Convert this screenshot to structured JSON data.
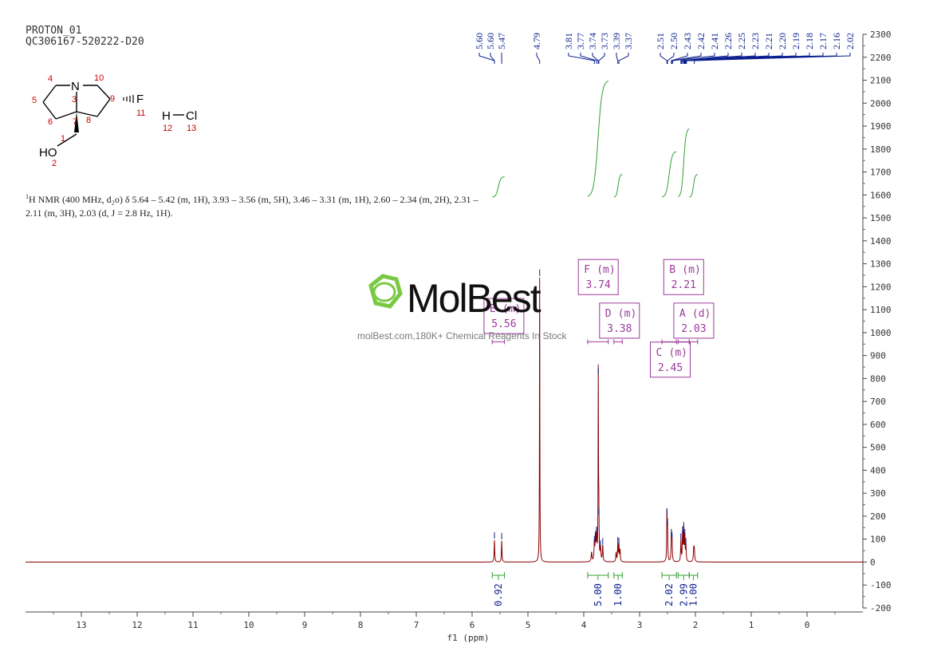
{
  "header": {
    "line1": "PROTON_01",
    "line2": "QC306167-520222-D20"
  },
  "description": {
    "sup": "1",
    "text": "H NMR (400 MHz, d₂o) δ 5.64 – 5.42 (m, 1H), 3.93 – 3.56 (m, 5H), 3.46 – 3.31 (m, 1H), 2.60 – 2.34 (m, 2H), 2.31 – 2.11 (m, 3H), 2.03 (d, J = 2.8 Hz, 1H)."
  },
  "watermark": {
    "brand": "MolBest",
    "tagline": "molBest.com,180K+ Chemical Reagents In Stock"
  },
  "molecule": {
    "atoms": [
      {
        "label": "N",
        "num": "3"
      },
      {
        "label": "F",
        "num": "11"
      },
      {
        "label": "HO",
        "num": "2"
      },
      {
        "label": "H",
        "num": "12"
      },
      {
        "label": "Cl",
        "num": "13"
      }
    ],
    "carbon_numbers": [
      "1",
      "4",
      "5",
      "6",
      "7",
      "8",
      "9",
      "10"
    ],
    "atom_color": "#000000",
    "number_color": "#cc0000"
  },
  "chart_data": {
    "type": "line",
    "xlabel": "f1 (ppm)",
    "xlim": [
      14.0,
      -1.0
    ],
    "x_reversed": true,
    "x_ticks": [
      13,
      12,
      11,
      10,
      9,
      8,
      7,
      6,
      5,
      4,
      3,
      2,
      1,
      0
    ],
    "ylim": [
      -200,
      2300
    ],
    "y_ticks": [
      -200,
      -100,
      0,
      100,
      200,
      300,
      400,
      500,
      600,
      700,
      800,
      900,
      1000,
      1100,
      1200,
      1300,
      1400,
      1500,
      1600,
      1700,
      1800,
      1900,
      2000,
      2100,
      2200,
      2300
    ],
    "y_axis_side": "right",
    "spectrum_color": "#8b0000",
    "integral_color": "#33a033",
    "label_color": "#0b1f8f",
    "multiplet_color": "#9b3a9b",
    "peaks": [
      {
        "ppm": 5.6,
        "height": 95,
        "width": 0.006
      },
      {
        "ppm": 5.47,
        "height": 92,
        "width": 0.006
      },
      {
        "ppm": 4.79,
        "height": 1240,
        "width": 0.004
      },
      {
        "ppm": 3.86,
        "height": 40,
        "width": 0.008
      },
      {
        "ppm": 3.81,
        "height": 80,
        "width": 0.007
      },
      {
        "ppm": 3.79,
        "height": 100,
        "width": 0.007
      },
      {
        "ppm": 3.77,
        "height": 120,
        "width": 0.007
      },
      {
        "ppm": 3.74,
        "height": 810,
        "width": 0.004
      },
      {
        "ppm": 3.73,
        "height": 200,
        "width": 0.005
      },
      {
        "ppm": 3.7,
        "height": 60,
        "width": 0.007
      },
      {
        "ppm": 3.66,
        "height": 70,
        "width": 0.007
      },
      {
        "ppm": 3.42,
        "height": 40,
        "width": 0.007
      },
      {
        "ppm": 3.39,
        "height": 75,
        "width": 0.006
      },
      {
        "ppm": 3.37,
        "height": 70,
        "width": 0.006
      },
      {
        "ppm": 3.35,
        "height": 50,
        "width": 0.006
      },
      {
        "ppm": 2.51,
        "height": 200,
        "width": 0.005
      },
      {
        "ppm": 2.5,
        "height": 150,
        "width": 0.005
      },
      {
        "ppm": 2.43,
        "height": 110,
        "width": 0.006
      },
      {
        "ppm": 2.42,
        "height": 95,
        "width": 0.006
      },
      {
        "ppm": 2.26,
        "height": 90,
        "width": 0.006
      },
      {
        "ppm": 2.23,
        "height": 120,
        "width": 0.006
      },
      {
        "ppm": 2.21,
        "height": 140,
        "width": 0.006
      },
      {
        "ppm": 2.19,
        "height": 110,
        "width": 0.006
      },
      {
        "ppm": 2.17,
        "height": 70,
        "width": 0.006
      },
      {
        "ppm": 2.03,
        "height": 50,
        "width": 0.008
      },
      {
        "ppm": 2.02,
        "height": 45,
        "width": 0.008
      }
    ],
    "peak_labels": [
      "5.60",
      "5.60",
      "5.47",
      "4.79",
      "3.81",
      "3.77",
      "3.74",
      "3.73",
      "3.39",
      "3.37",
      "2.51",
      "2.50",
      "2.43",
      "2.42",
      "2.41",
      "2.26",
      "2.25",
      "2.23",
      "2.21",
      "2.20",
      "2.19",
      "2.18",
      "2.17",
      "2.16",
      "2.02"
    ],
    "integrals": [
      {
        "from": 5.64,
        "to": 5.42,
        "value": "0.92"
      },
      {
        "from": 3.93,
        "to": 3.56,
        "value": "5.00"
      },
      {
        "from": 3.46,
        "to": 3.31,
        "value": "1.00"
      },
      {
        "from": 2.6,
        "to": 2.34,
        "value": "2.02"
      },
      {
        "from": 2.31,
        "to": 2.11,
        "value": "2.99"
      },
      {
        "from": 2.11,
        "to": 1.96,
        "value": "1.00"
      }
    ],
    "integral_curves": [
      {
        "from": 5.64,
        "to": 5.42,
        "y_start": 1590,
        "y_end": 1680
      },
      {
        "from": 3.93,
        "to": 3.56,
        "y_start": 1590,
        "y_end": 2100
      },
      {
        "from": 3.46,
        "to": 3.31,
        "y_start": 1590,
        "y_end": 1690
      },
      {
        "from": 2.6,
        "to": 2.34,
        "y_start": 1590,
        "y_end": 1790
      },
      {
        "from": 2.31,
        "to": 2.11,
        "y_start": 1590,
        "y_end": 1890
      },
      {
        "from": 2.11,
        "to": 1.96,
        "y_start": 1590,
        "y_end": 1690
      }
    ],
    "multiplets": [
      {
        "letter": "E",
        "type": "(m)",
        "shift": "5.56",
        "from": 5.64,
        "to": 5.42,
        "box_ppm": 5.43,
        "box_y": 1100
      },
      {
        "letter": "F",
        "type": "(m)",
        "shift": "3.74",
        "from": 3.93,
        "to": 3.56,
        "box_ppm": 3.74,
        "box_y": 1270
      },
      {
        "letter": "D",
        "type": "(m)",
        "shift": "3.38",
        "from": 3.46,
        "to": 3.31,
        "box_ppm": 3.36,
        "box_y": 1080
      },
      {
        "letter": "B",
        "type": "(m)",
        "shift": "2.21",
        "from": 2.31,
        "to": 2.11,
        "box_ppm": 2.21,
        "box_y": 1270
      },
      {
        "letter": "A",
        "type": "(d)",
        "shift": "2.03",
        "from": 2.11,
        "to": 1.96,
        "box_ppm": 2.03,
        "box_y": 1080
      },
      {
        "letter": "C",
        "type": "(m)",
        "shift": "2.45",
        "from": 2.6,
        "to": 2.34,
        "box_ppm": 2.45,
        "box_y": 910
      }
    ]
  }
}
